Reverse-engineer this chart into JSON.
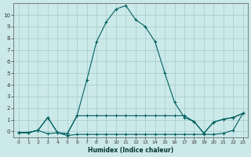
{
  "xlabel": "Humidex (Indice chaleur)",
  "bg_color": "#cce9e9",
  "grid_color": "#aacfcf",
  "line_color": "#006060",
  "xlim": [
    -0.5,
    23.5
  ],
  "ylim": [
    -0.5,
    11.0
  ],
  "x_ticks": [
    0,
    1,
    2,
    3,
    4,
    5,
    6,
    7,
    8,
    9,
    10,
    11,
    12,
    13,
    14,
    15,
    16,
    17,
    18,
    19,
    20,
    21,
    22,
    23
  ],
  "y_ticks": [
    0,
    1,
    2,
    3,
    4,
    5,
    6,
    7,
    8,
    9,
    10
  ],
  "curve_main_x": [
    0,
    1,
    2,
    3,
    4,
    5,
    6,
    7,
    8,
    9,
    10,
    11,
    12,
    13,
    14,
    15,
    16,
    17,
    18,
    19,
    20,
    21,
    22,
    23
  ],
  "curve_main_y": [
    -0.1,
    -0.1,
    0.1,
    1.2,
    -0.1,
    -0.2,
    1.35,
    4.4,
    7.7,
    9.4,
    10.5,
    10.8,
    9.6,
    9.0,
    7.7,
    5.0,
    2.5,
    1.2,
    0.85,
    -0.15,
    0.8,
    1.05,
    1.2,
    1.55
  ],
  "curve_upper_x": [
    0,
    1,
    2,
    3,
    4,
    5,
    6,
    7,
    8,
    9,
    10,
    11,
    12,
    13,
    14,
    15,
    16,
    17,
    18,
    19,
    20,
    21,
    22,
    23
  ],
  "curve_upper_y": [
    -0.1,
    -0.1,
    0.1,
    1.2,
    -0.1,
    -0.2,
    1.35,
    1.35,
    1.35,
    1.35,
    1.35,
    1.35,
    1.35,
    1.35,
    1.35,
    1.35,
    1.35,
    1.35,
    0.85,
    -0.15,
    0.8,
    1.05,
    1.2,
    1.55
  ],
  "curve_lower_x": [
    0,
    1,
    2,
    3,
    4,
    5,
    6,
    7,
    8,
    9,
    10,
    11,
    12,
    13,
    14,
    15,
    16,
    17,
    18,
    19,
    20,
    21,
    22,
    23
  ],
  "curve_lower_y": [
    -0.1,
    -0.1,
    0.1,
    -0.2,
    -0.1,
    -0.35,
    -0.25,
    -0.25,
    -0.25,
    -0.25,
    -0.25,
    -0.25,
    -0.25,
    -0.25,
    -0.25,
    -0.25,
    -0.25,
    -0.25,
    -0.25,
    -0.25,
    -0.25,
    -0.15,
    0.1,
    1.55
  ]
}
